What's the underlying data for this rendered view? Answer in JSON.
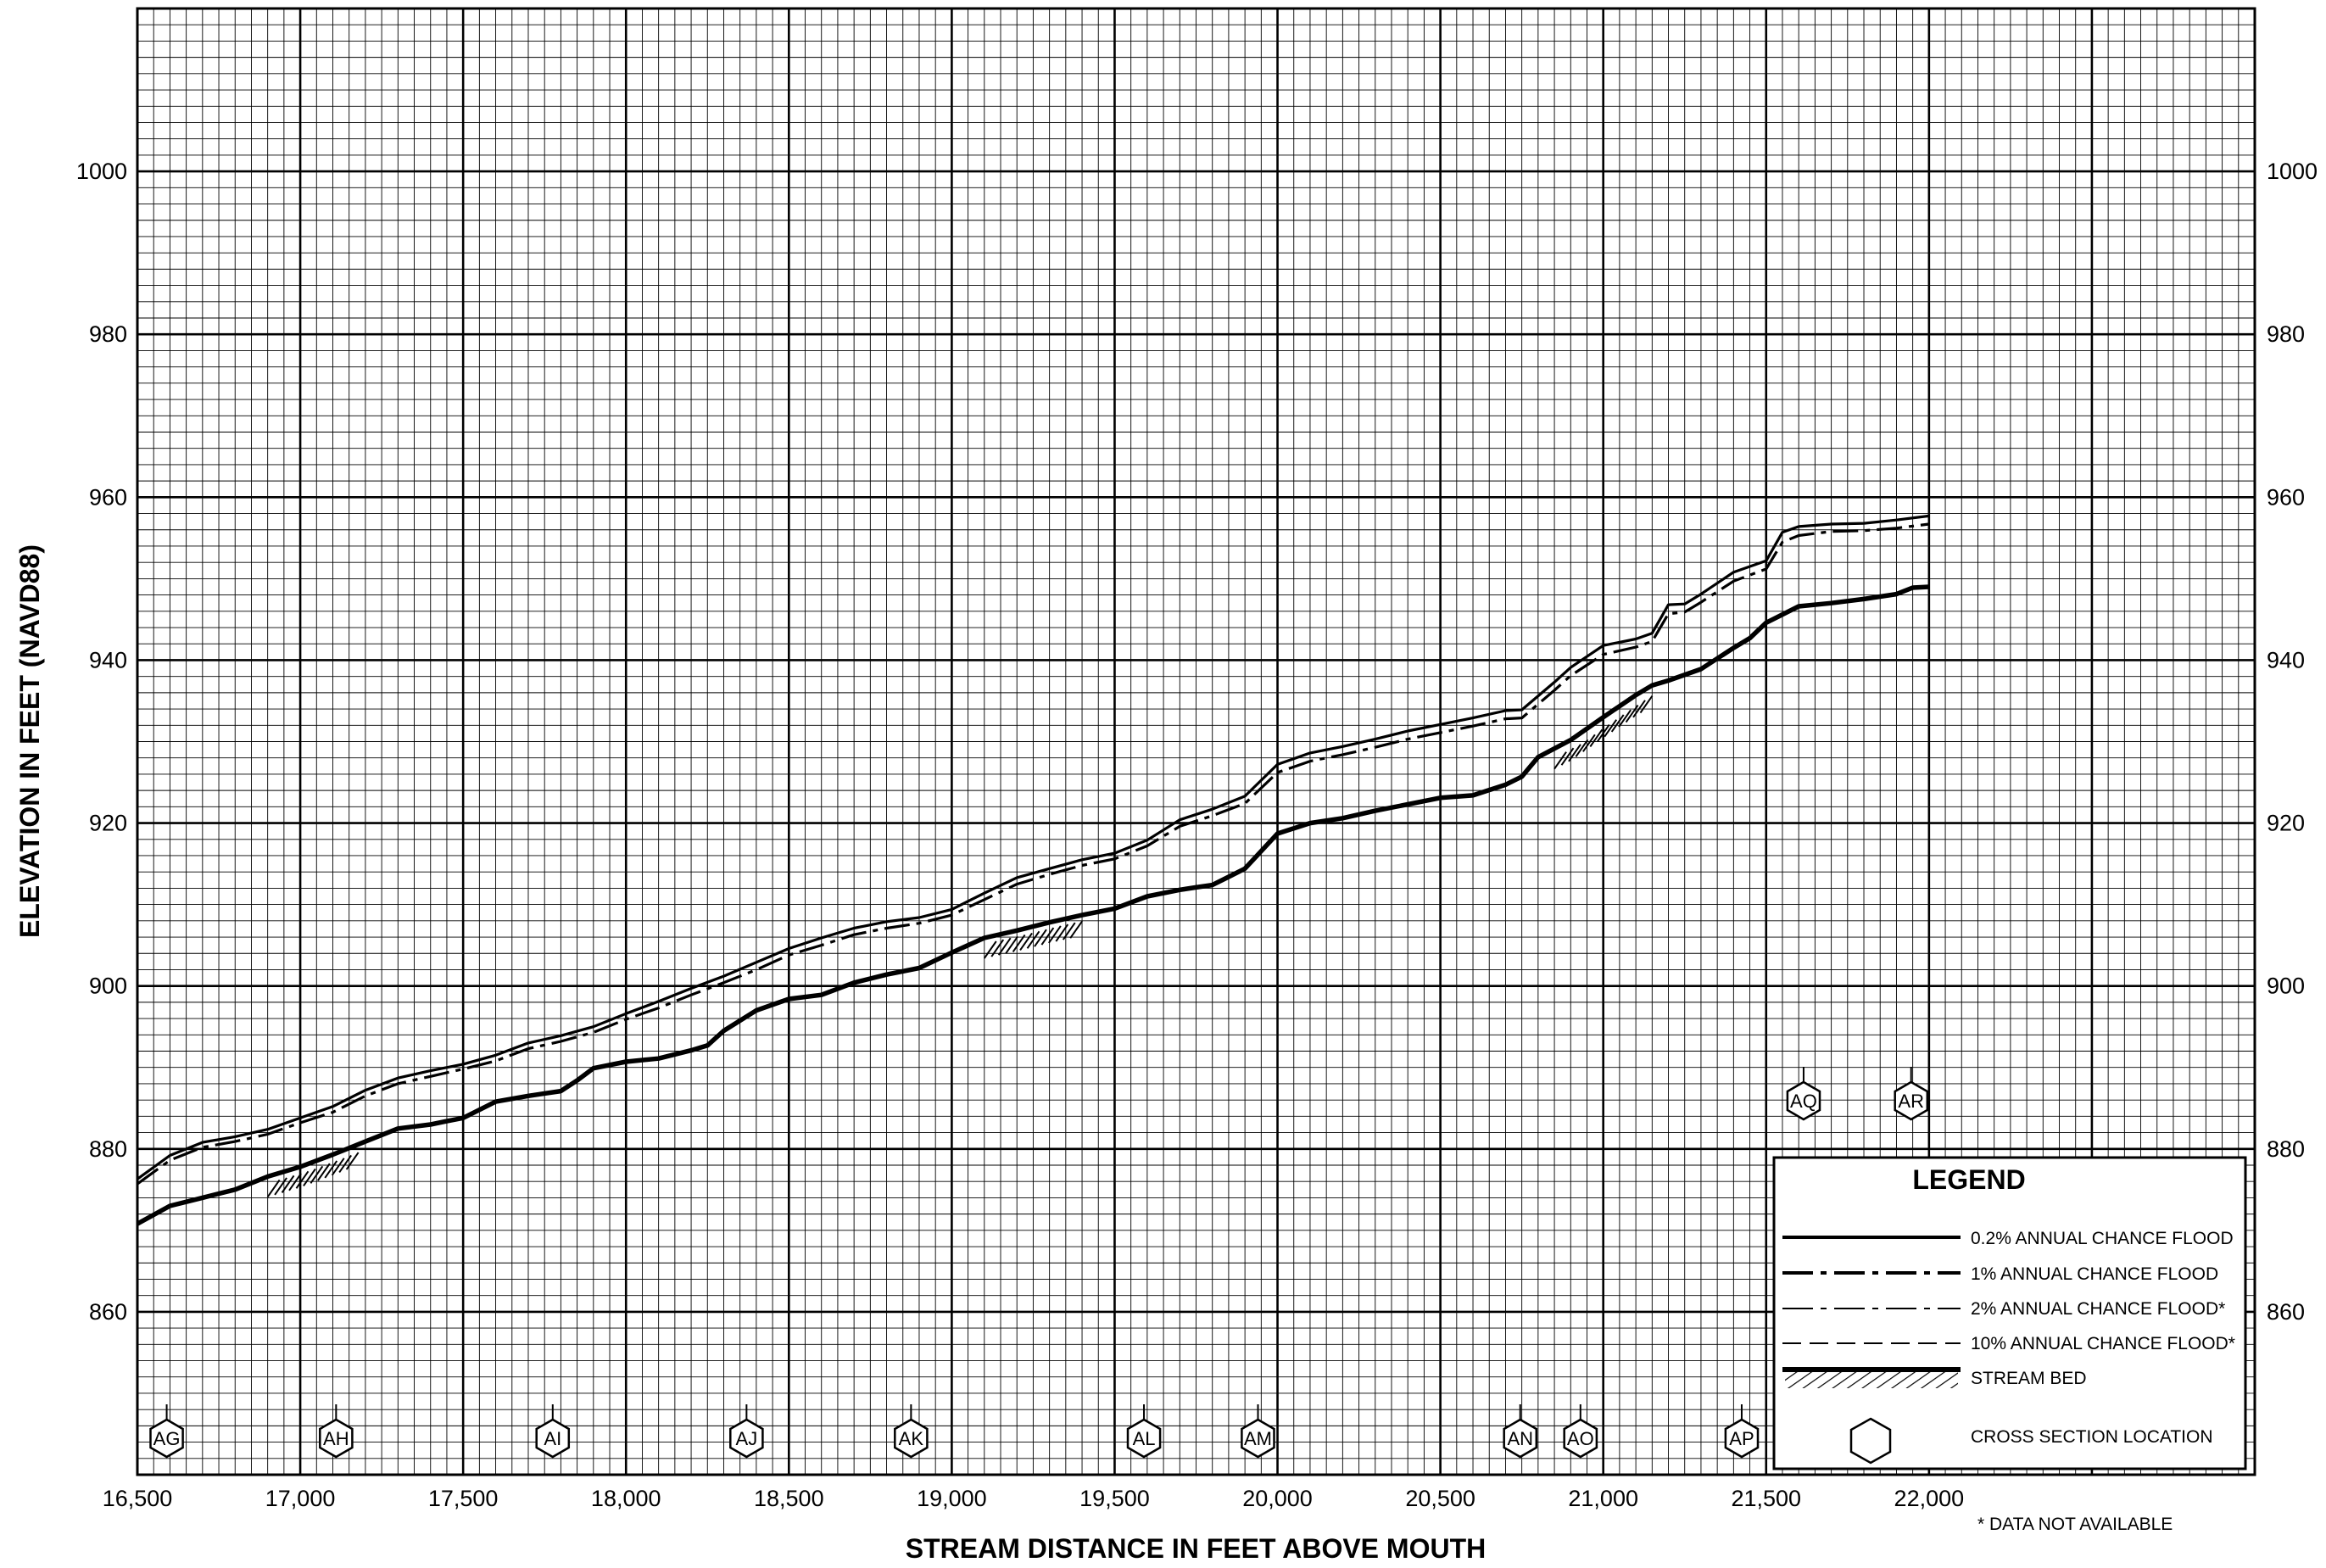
{
  "chart_data": {
    "type": "line",
    "xlabel": "STREAM DISTANCE IN FEET ABOVE MOUTH",
    "ylabel": "ELEVATION IN FEET (NAVD88)",
    "xlim": [
      16500,
      23000
    ],
    "ylim": [
      840,
      1020
    ],
    "x_ticks": [
      16500,
      17000,
      17500,
      18000,
      18500,
      19000,
      19500,
      20000,
      20500,
      21000,
      21500,
      22000
    ],
    "x_tick_labels": [
      "16,500",
      "17,000",
      "17,500",
      "18,000",
      "18,500",
      "19,000",
      "19,500",
      "20,000",
      "20,500",
      "21,000",
      "21,500",
      "22,000"
    ],
    "y_ticks": [
      860,
      880,
      900,
      920,
      940,
      960,
      980,
      1000
    ],
    "y_tick_labels": [
      "860",
      "880",
      "900",
      "920",
      "940",
      "960",
      "980",
      "1000"
    ],
    "grid": true,
    "legend_placement": "bottom-right",
    "legend": {
      "title": "LEGEND",
      "entries": [
        "0.2% ANNUAL CHANCE FLOOD",
        "1% ANNUAL CHANCE FLOOD",
        "2% ANNUAL CHANCE FLOOD*",
        "10% ANNUAL CHANCE FLOOD*",
        "STREAM BED",
        "CROSS SECTION LOCATION"
      ]
    },
    "footnote": "* DATA NOT AVAILABLE",
    "series": [
      {
        "name": "0.2% ANNUAL CHANCE FLOOD",
        "style": "solid",
        "x": [
          16500,
          16600,
          16700,
          16800,
          16900,
          17000,
          17100,
          17200,
          17300,
          17400,
          17500,
          17600,
          17700,
          17800,
          17900,
          18000,
          18100,
          18200,
          18300,
          18400,
          18500,
          18600,
          18700,
          18800,
          18900,
          19000,
          19100,
          19200,
          19300,
          19400,
          19500,
          19600,
          19700,
          19800,
          19900,
          20000,
          20100,
          20200,
          20300,
          20400,
          20500,
          20600,
          20700,
          20750,
          20850,
          20900,
          21000,
          21100,
          21150,
          21200,
          21250,
          21300,
          21400,
          21500,
          21550,
          21600,
          21700,
          21800,
          21900,
          22000
        ],
        "y": [
          876.3,
          879.2,
          880.8,
          881.5,
          882.4,
          883.8,
          885.2,
          887.2,
          888.7,
          889.6,
          890.4,
          891.5,
          893.0,
          893.9,
          895.0,
          896.6,
          898.1,
          899.7,
          901.2,
          902.9,
          904.6,
          905.9,
          907.1,
          907.9,
          908.4,
          909.4,
          911.4,
          913.3,
          914.4,
          915.5,
          916.3,
          917.9,
          920.4,
          921.7,
          923.3,
          927.2,
          928.6,
          929.4,
          930.3,
          931.3,
          932.1,
          932.9,
          933.8,
          933.9,
          937.3,
          939.1,
          941.8,
          942.6,
          943.3,
          946.8,
          946.9,
          948.1,
          950.8,
          952.2,
          955.7,
          956.4,
          956.7,
          956.8,
          957.2,
          957.7
        ]
      },
      {
        "name": "1% ANNUAL CHANCE FLOOD",
        "style": "dash-dot",
        "x": [
          16500,
          16600,
          16700,
          16800,
          16900,
          17000,
          17100,
          17200,
          17300,
          17400,
          17500,
          17600,
          17700,
          17800,
          17900,
          18000,
          18100,
          18200,
          18300,
          18400,
          18500,
          18600,
          18700,
          18800,
          18900,
          19000,
          19100,
          19200,
          19300,
          19400,
          19500,
          19600,
          19700,
          19800,
          19900,
          20000,
          20100,
          20200,
          20300,
          20400,
          20500,
          20600,
          20700,
          20750,
          20850,
          20900,
          21000,
          21100,
          21150,
          21200,
          21250,
          21300,
          21400,
          21500,
          21550,
          21600,
          21700,
          21800,
          21900,
          22000
        ],
        "y": [
          875.7,
          878.6,
          880.2,
          880.9,
          881.8,
          883.2,
          884.5,
          886.5,
          888.0,
          888.9,
          889.8,
          890.8,
          892.3,
          893.2,
          894.3,
          895.9,
          897.3,
          898.9,
          900.4,
          902.0,
          903.8,
          905.0,
          906.3,
          907.1,
          907.7,
          908.7,
          910.6,
          912.5,
          913.7,
          914.8,
          915.6,
          917.2,
          919.6,
          920.9,
          922.4,
          926.2,
          927.6,
          928.4,
          929.3,
          930.3,
          931.1,
          931.9,
          932.8,
          932.9,
          936.3,
          938.1,
          940.7,
          941.6,
          942.3,
          945.7,
          945.9,
          947.1,
          949.7,
          951.2,
          954.5,
          955.3,
          955.8,
          955.9,
          956.2,
          956.7
        ]
      },
      {
        "name": "STREAM BED",
        "style": "thick",
        "x": [
          16500,
          16600,
          16700,
          16800,
          16900,
          17000,
          17100,
          17200,
          17300,
          17400,
          17450,
          17500,
          17550,
          17600,
          17700,
          17800,
          17850,
          17900,
          18000,
          18100,
          18200,
          18250,
          18300,
          18400,
          18500,
          18600,
          18700,
          18800,
          18900,
          19000,
          19100,
          19200,
          19300,
          19400,
          19500,
          19600,
          19700,
          19750,
          19800,
          19850,
          19900,
          20000,
          20100,
          20200,
          20300,
          20400,
          20500,
          20600,
          20700,
          20750,
          20800,
          20900,
          21000,
          21100,
          21150,
          21200,
          21300,
          21400,
          21450,
          21500,
          21600,
          21700,
          21800,
          21900,
          21950,
          22000
        ],
        "y": [
          870.8,
          873.0,
          874.0,
          875.0,
          876.6,
          877.8,
          879.3,
          880.9,
          882.5,
          883.0,
          883.4,
          883.8,
          884.8,
          885.8,
          886.5,
          887.1,
          888.4,
          889.9,
          890.7,
          891.1,
          892.1,
          892.7,
          894.5,
          897.0,
          898.4,
          898.9,
          900.4,
          901.4,
          902.2,
          904.1,
          905.9,
          906.8,
          907.8,
          908.7,
          909.5,
          911.0,
          911.8,
          912.1,
          912.4,
          913.4,
          914.4,
          918.7,
          920.0,
          920.6,
          921.5,
          922.3,
          923.1,
          923.4,
          924.7,
          925.7,
          928.1,
          930.2,
          933.0,
          935.7,
          936.9,
          937.5,
          938.9,
          941.5,
          942.7,
          944.6,
          946.6,
          947.0,
          947.5,
          948.1,
          948.9,
          949.0
        ]
      }
    ],
    "cross_sections": [
      {
        "label": "AG",
        "x": 16590
      },
      {
        "label": "AH",
        "x": 17110
      },
      {
        "label": "AI",
        "x": 17775
      },
      {
        "label": "AJ",
        "x": 18370
      },
      {
        "label": "AK",
        "x": 18875
      },
      {
        "label": "AL",
        "x": 19590
      },
      {
        "label": "AM",
        "x": 19940
      },
      {
        "label": "AN",
        "x": 20745
      },
      {
        "label": "AO",
        "x": 20930
      },
      {
        "label": "AP",
        "x": 21425
      },
      {
        "label": "AQ",
        "x": 21615
      },
      {
        "label": "AR",
        "x": 21945
      }
    ]
  }
}
